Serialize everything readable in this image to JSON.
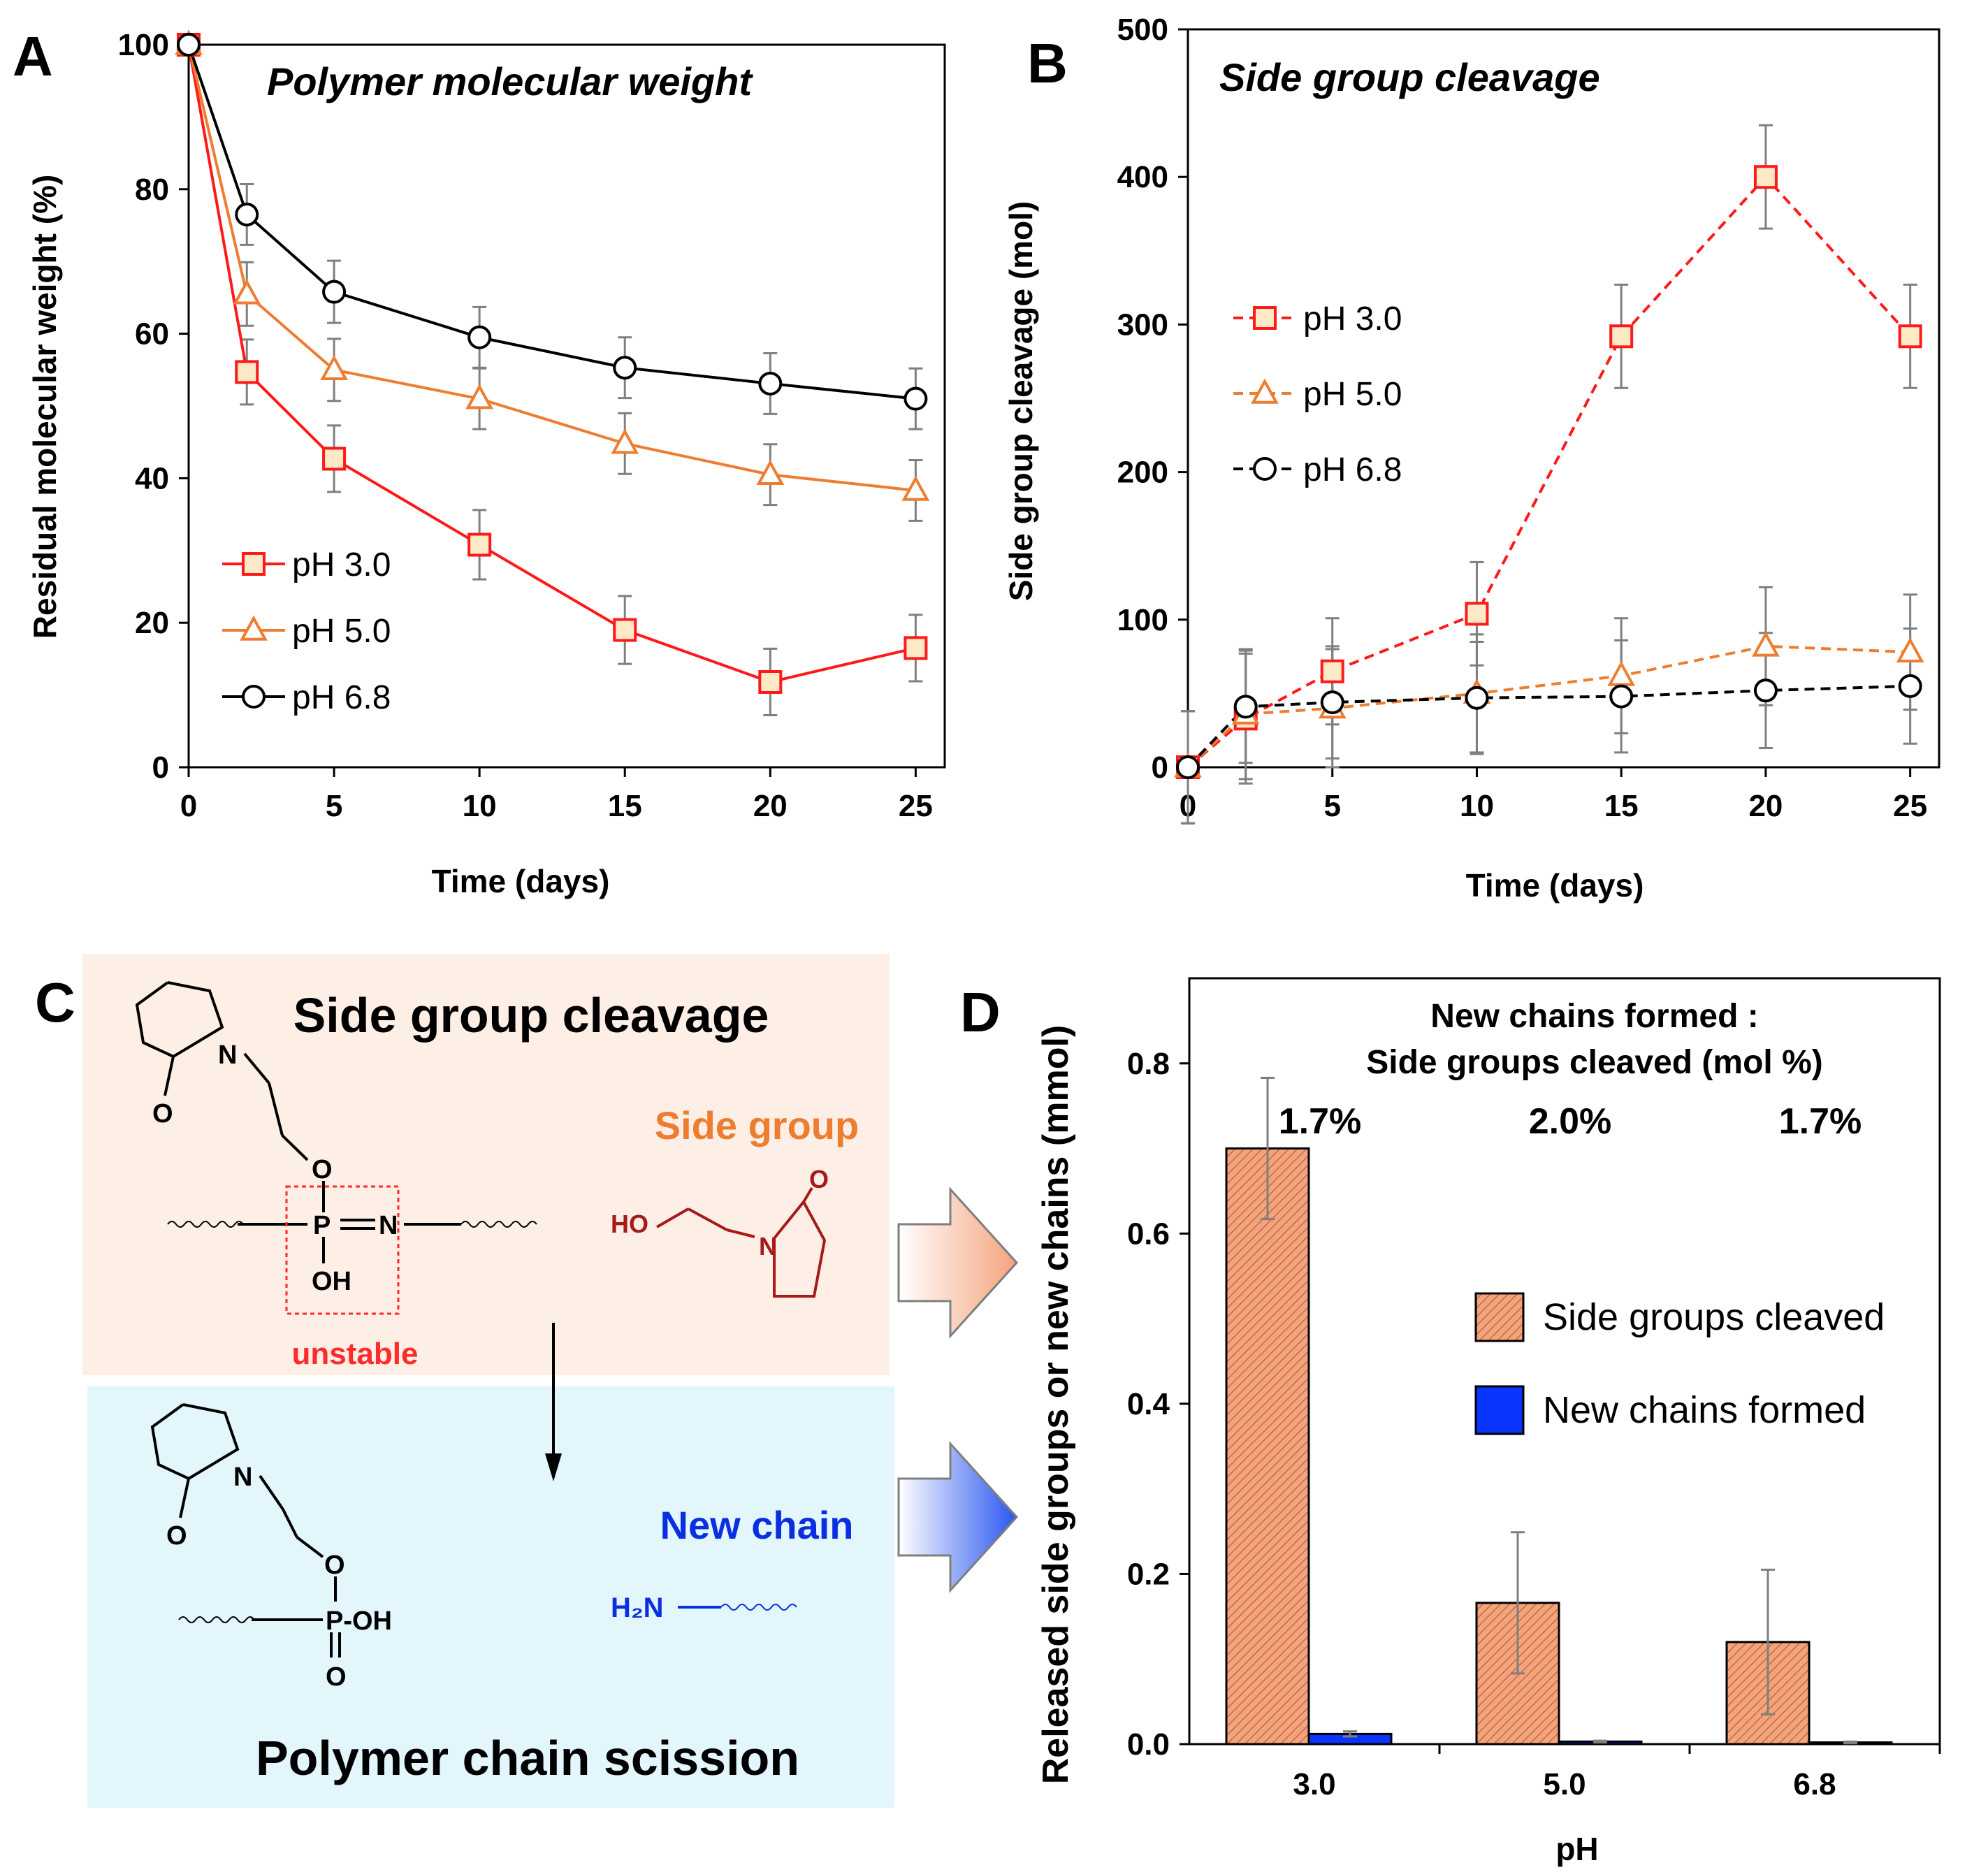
{
  "colors": {
    "ph3": "#ff1a1a",
    "ph5": "#ed7d31",
    "ph68": "#000000",
    "marker_fill_square": "#fde9c6",
    "bar_side": "#f4a47c",
    "bar_new": "#0a35ff",
    "error": "#7f7f7f",
    "panel_c_top": "#fdefe6",
    "panel_c_bottom": "#e3f6fc",
    "unstable": "#ff2a2a",
    "side_group_label": "#ed7d31",
    "side_group_struct": "#a51b1b",
    "new_chain": "#0a2fe0"
  },
  "panel_labels": {
    "a": "A",
    "b": "B",
    "c": "C",
    "d": "D"
  },
  "chart_data": [
    {
      "panel": "A",
      "type": "line",
      "title": "Polymer molecular weight",
      "xlabel": "Time (days)",
      "ylabel": "Residual molecular weight (%)",
      "xlim": [
        0,
        26
      ],
      "ylim": [
        0,
        100
      ],
      "xticks": [
        0,
        5,
        10,
        15,
        20,
        25
      ],
      "yticks": [
        0,
        20,
        40,
        60,
        80,
        100
      ],
      "legend_position": "bottom-left",
      "series": [
        {
          "name": "pH 3.0",
          "marker": "square",
          "dashed": false,
          "color": "#ff1a1a",
          "x": [
            0,
            2,
            5,
            10,
            15,
            20,
            25
          ],
          "y": [
            100,
            54.7,
            42.7,
            30.8,
            19,
            11.8,
            16.5
          ],
          "err": [
            0,
            4.5,
            4.6,
            4.8,
            4.7,
            4.6,
            4.6
          ]
        },
        {
          "name": "pH 5.0",
          "marker": "triangle",
          "dashed": false,
          "color": "#ed7d31",
          "x": [
            0,
            2,
            5,
            10,
            15,
            20,
            25
          ],
          "y": [
            100,
            65.5,
            55,
            51,
            44.8,
            40.5,
            38.3
          ],
          "err": [
            0,
            4.4,
            4.3,
            4.2,
            4.2,
            4.2,
            4.2
          ]
        },
        {
          "name": "pH 6.8",
          "marker": "circle",
          "dashed": false,
          "color": "#000000",
          "x": [
            0,
            2,
            5,
            10,
            15,
            20,
            25
          ],
          "y": [
            100,
            76.5,
            65.8,
            59.5,
            55.3,
            53.1,
            51
          ],
          "err": [
            0,
            4.2,
            4.3,
            4.2,
            4.2,
            4.2,
            4.2
          ]
        }
      ]
    },
    {
      "panel": "B",
      "type": "line",
      "title": "Side group cleavage",
      "xlabel": "Time (days)",
      "ylabel": "Side group cleavage (mol)",
      "xlim": [
        0,
        26
      ],
      "ylim": [
        0,
        500
      ],
      "xticks": [
        0,
        5,
        10,
        15,
        20,
        25
      ],
      "yticks": [
        0,
        100,
        200,
        300,
        400,
        500
      ],
      "legend_position": "middle-left",
      "series": [
        {
          "name": "pH 3.0",
          "marker": "square",
          "dashed": true,
          "color": "#ff1a1a",
          "x": [
            0,
            2,
            5,
            10,
            15,
            20,
            25
          ],
          "y": [
            0,
            33,
            65,
            104,
            292,
            400,
            292
          ],
          "err": [
            38,
            44,
            36,
            35,
            35,
            35,
            35
          ]
        },
        {
          "name": "pH 5.0",
          "marker": "triangle",
          "dashed": true,
          "color": "#ed7d31",
          "x": [
            0,
            2,
            5,
            10,
            15,
            20,
            25
          ],
          "y": [
            0,
            36,
            40,
            50,
            62,
            82,
            78
          ],
          "err": [
            38,
            44,
            40,
            40,
            39,
            40,
            39
          ]
        },
        {
          "name": "pH 6.8",
          "marker": "circle",
          "dashed": true,
          "color": "#000000",
          "x": [
            0,
            2,
            5,
            10,
            15,
            20,
            25
          ],
          "y": [
            0,
            41,
            44,
            47,
            48,
            52,
            55
          ],
          "err": [
            38,
            38,
            38,
            38,
            38,
            39,
            39
          ]
        }
      ]
    },
    {
      "panel": "D",
      "type": "bar",
      "title_line1": "New chains formed :",
      "title_line2": "Side groups cleaved (mol %)",
      "xlabel": "pH",
      "ylabel": "Released side groups or new chains (mmol)",
      "categories": [
        "3.0",
        "5.0",
        "6.8"
      ],
      "ylim": [
        0,
        0.9
      ],
      "yticks": [
        "0.0",
        "0.2",
        "0.4",
        "0.6",
        "0.8"
      ],
      "ytick_values": [
        0,
        0.2,
        0.4,
        0.6,
        0.8
      ],
      "ratios": [
        "1.7%",
        "2.0%",
        "1.7%"
      ],
      "legend_position": "center-right",
      "series": [
        {
          "name": "Side groups cleaved",
          "values": [
            0.7,
            0.166,
            0.12
          ],
          "err": [
            0.083,
            0.083,
            0.085
          ],
          "color": "#f4a47c",
          "hatched": true
        },
        {
          "name": "New chains formed",
          "values": [
            0.012,
            0.003,
            0.002
          ],
          "err": [
            0.003,
            0.001,
            0.001
          ],
          "color": "#0a35ff",
          "hatched": false
        }
      ]
    }
  ],
  "panel_c": {
    "top_title": "Side group cleavage",
    "bottom_title": "Polymer chain scission",
    "side_group_label": "Side group",
    "new_chain_label": "New chain",
    "unstable_label": "unstable",
    "atoms": {
      "n": "N",
      "o": "O",
      "p": "P",
      "oh": "OH",
      "ho": "HO",
      "poh": "P-OH",
      "h2n": "H₂N"
    }
  }
}
